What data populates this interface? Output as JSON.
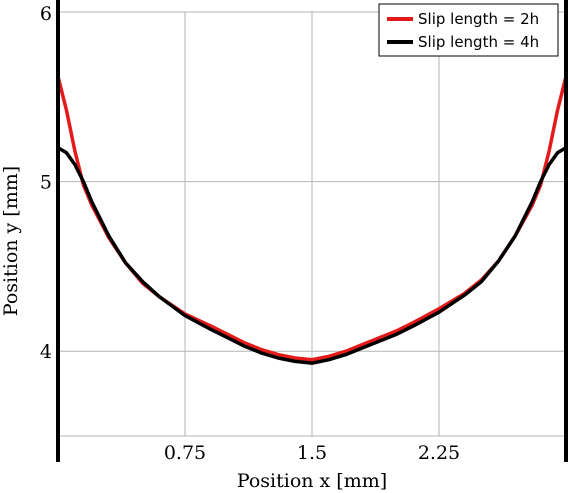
{
  "chart_data": {
    "type": "line",
    "title": "",
    "xlabel": "Position x [mm]",
    "ylabel": "Position y [mm]",
    "xlim": [
      0,
      3.0
    ],
    "ylim": [
      3.5,
      6.0
    ],
    "x_ticks": [
      {
        "value": 0.75,
        "label": "0.75"
      },
      {
        "value": 1.5,
        "label": "1.5"
      },
      {
        "value": 2.25,
        "label": "2.25"
      }
    ],
    "y_ticks": [
      {
        "value": 4,
        "label": "4"
      },
      {
        "value": 5,
        "label": "5"
      },
      {
        "value": 6,
        "label": "6"
      }
    ],
    "x_grid": [
      0.75,
      1.5,
      2.25
    ],
    "y_grid": [
      3.5,
      4,
      5,
      6
    ],
    "grid": true,
    "legend_position": "top-right",
    "series": [
      {
        "name": "Slip length = 2h",
        "color": "#e41a1a",
        "points": [
          [
            0.0,
            5.62
          ],
          [
            0.05,
            5.42
          ],
          [
            0.1,
            5.18
          ],
          [
            0.15,
            4.98
          ],
          [
            0.2,
            4.86
          ],
          [
            0.3,
            4.67
          ],
          [
            0.4,
            4.52
          ],
          [
            0.5,
            4.4
          ],
          [
            0.6,
            4.32
          ],
          [
            0.75,
            4.22
          ],
          [
            0.9,
            4.15
          ],
          [
            1.0,
            4.1
          ],
          [
            1.1,
            4.05
          ],
          [
            1.2,
            4.01
          ],
          [
            1.3,
            3.98
          ],
          [
            1.4,
            3.96
          ],
          [
            1.5,
            3.95
          ],
          [
            1.6,
            3.97
          ],
          [
            1.7,
            4.0
          ],
          [
            1.8,
            4.04
          ],
          [
            1.9,
            4.08
          ],
          [
            2.0,
            4.12
          ],
          [
            2.1,
            4.17
          ],
          [
            2.25,
            4.25
          ],
          [
            2.4,
            4.34
          ],
          [
            2.5,
            4.42
          ],
          [
            2.6,
            4.53
          ],
          [
            2.7,
            4.68
          ],
          [
            2.8,
            4.86
          ],
          [
            2.85,
            4.98
          ],
          [
            2.9,
            5.18
          ],
          [
            2.95,
            5.42
          ],
          [
            3.0,
            5.62
          ]
        ]
      },
      {
        "name": "Slip length = 4h",
        "color": "#000000",
        "points": [
          [
            0.0,
            5.2
          ],
          [
            0.05,
            5.17
          ],
          [
            0.1,
            5.1
          ],
          [
            0.15,
            5.0
          ],
          [
            0.2,
            4.88
          ],
          [
            0.3,
            4.68
          ],
          [
            0.4,
            4.52
          ],
          [
            0.5,
            4.41
          ],
          [
            0.6,
            4.32
          ],
          [
            0.75,
            4.21
          ],
          [
            0.9,
            4.13
          ],
          [
            1.0,
            4.08
          ],
          [
            1.1,
            4.03
          ],
          [
            1.2,
            3.99
          ],
          [
            1.3,
            3.96
          ],
          [
            1.4,
            3.94
          ],
          [
            1.5,
            3.93
          ],
          [
            1.6,
            3.95
          ],
          [
            1.7,
            3.98
          ],
          [
            1.8,
            4.02
          ],
          [
            1.9,
            4.06
          ],
          [
            2.0,
            4.1
          ],
          [
            2.1,
            4.15
          ],
          [
            2.25,
            4.23
          ],
          [
            2.4,
            4.33
          ],
          [
            2.5,
            4.41
          ],
          [
            2.6,
            4.53
          ],
          [
            2.7,
            4.68
          ],
          [
            2.8,
            4.88
          ],
          [
            2.85,
            5.0
          ],
          [
            2.9,
            5.1
          ],
          [
            2.95,
            5.17
          ],
          [
            3.0,
            5.2
          ]
        ]
      }
    ]
  }
}
